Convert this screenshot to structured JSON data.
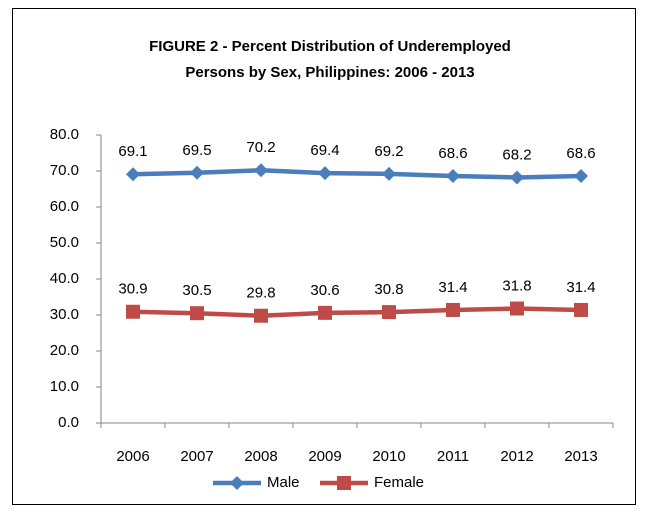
{
  "chart_data": {
    "type": "line",
    "title": "FIGURE 2 - Percent Distribution of Underemployed",
    "subtitle": "Persons by Sex, Philippines:  2006 - 2013",
    "categories": [
      "2006",
      "2007",
      "2008",
      "2009",
      "2010",
      "2011",
      "2012",
      "2013"
    ],
    "series": [
      {
        "name": "Male",
        "color": "#4a7ebb",
        "marker": "diamond",
        "values": [
          69.1,
          69.5,
          70.2,
          69.4,
          69.2,
          68.6,
          68.2,
          68.6
        ]
      },
      {
        "name": "Female",
        "color": "#be4b48",
        "marker": "square",
        "values": [
          30.9,
          30.5,
          29.8,
          30.6,
          30.8,
          31.4,
          31.8,
          31.4
        ]
      }
    ],
    "ylim": [
      0,
      80
    ],
    "yticks": [
      {
        "value": 0,
        "label": "0.0"
      },
      {
        "value": 10,
        "label": "10.0"
      },
      {
        "value": 20,
        "label": "20.0"
      },
      {
        "value": 30,
        "label": "30.0"
      },
      {
        "value": 40,
        "label": "40.0"
      },
      {
        "value": 50,
        "label": "50.0"
      },
      {
        "value": 60,
        "label": "60.0"
      },
      {
        "value": 70,
        "label": "70.0"
      },
      {
        "value": 80,
        "label": "80.0"
      }
    ],
    "grid": false,
    "legend": "bottom"
  }
}
